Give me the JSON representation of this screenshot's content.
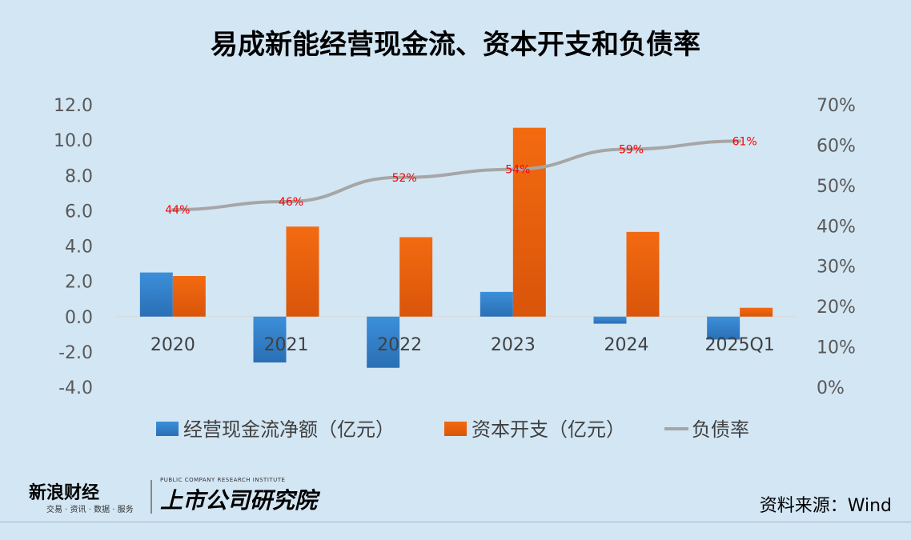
{
  "title": "易成新能经营现金流、资本开支和负债率",
  "source": "资料来源：Wind",
  "logos": {
    "sina_brand": "新浪财经",
    "sina_tagline": "交易 · 资讯 · 数据 · 服务",
    "institute_en": "PUBLIC COMPANY RESEARCH INSTITUTE",
    "institute_zh": "上市公司研究院"
  },
  "colors": {
    "cashflow": "#3c8fda",
    "capex": "#f36a10",
    "debt_ratio": "#a6a6a6",
    "data_label": "#ff0000"
  },
  "chart_data": {
    "type": "bar",
    "categories": [
      "2020",
      "2021",
      "2022",
      "2023",
      "2024",
      "2025Q1"
    ],
    "series": [
      {
        "name": "经营现金流净额（亿元）",
        "type": "bar",
        "axis": "left",
        "values": [
          2.5,
          -2.6,
          -2.9,
          1.4,
          -0.4,
          -1.3
        ]
      },
      {
        "name": "资本开支（亿元）",
        "type": "bar",
        "axis": "left",
        "values": [
          2.3,
          5.1,
          4.5,
          10.7,
          4.8,
          0.5
        ]
      },
      {
        "name": "负债率",
        "type": "line",
        "axis": "right",
        "values": [
          44,
          46,
          52,
          54,
          59,
          61
        ],
        "labels": [
          "44%",
          "46%",
          "52%",
          "54%",
          "59%",
          "61%"
        ]
      }
    ],
    "y_left": {
      "min": -4.0,
      "max": 12.0,
      "ticks": [
        "12.0",
        "10.0",
        "8.0",
        "6.0",
        "4.0",
        "2.0",
        "0.0",
        "-2.0",
        "-4.0"
      ]
    },
    "y_right": {
      "min": 0,
      "max": 70,
      "ticks": [
        "70%",
        "60%",
        "50%",
        "40%",
        "30%",
        "20%",
        "10%",
        "0%"
      ]
    },
    "legend": "bottom",
    "grid": false
  }
}
